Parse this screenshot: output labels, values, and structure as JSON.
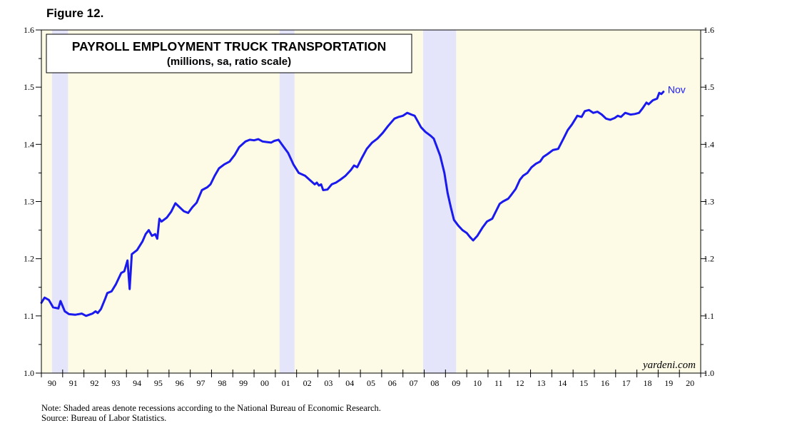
{
  "figure_label": "Figure 12.",
  "notes": {
    "note": "Note: Shaded areas denote recessions according to the National Bureau of Economic Research.",
    "source": "Source: Bureau of Labor Statistics."
  },
  "colors": {
    "plot_bg": "#fdfbe6",
    "recession": "#e4e4fb",
    "line": "#1a1aee",
    "annotation": "#1a1aff"
  },
  "chart_data": {
    "type": "line",
    "title": "PAYROLL EMPLOYMENT TRUCK TRANSPORTATION",
    "subtitle": "(millions, sa, ratio scale)",
    "credit": "yardeni.com",
    "annotation": "Nov",
    "ylim": [
      1.0,
      1.6
    ],
    "xlim": [
      1990,
      2021
    ],
    "scale": "ratio",
    "y_ticks": [
      "1.0",
      "1.1",
      "1.2",
      "1.3",
      "1.4",
      "1.5",
      "1.6"
    ],
    "x_tick_labels": [
      "90",
      "91",
      "92",
      "93",
      "94",
      "95",
      "96",
      "97",
      "98",
      "99",
      "00",
      "01",
      "02",
      "03",
      "04",
      "05",
      "06",
      "07",
      "08",
      "09",
      "10",
      "11",
      "12",
      "13",
      "14",
      "15",
      "16",
      "17",
      "18",
      "19",
      "20"
    ],
    "recessions": [
      [
        1990.5,
        1991.25
      ],
      [
        2001.2,
        2001.9
      ],
      [
        2007.95,
        2009.5
      ]
    ],
    "series": [
      {
        "values": [
          [
            1990.0,
            1.123
          ],
          [
            1990.15,
            1.132
          ],
          [
            1990.35,
            1.128
          ],
          [
            1990.55,
            1.115
          ],
          [
            1990.8,
            1.113
          ],
          [
            1990.9,
            1.126
          ],
          [
            1991.1,
            1.108
          ],
          [
            1991.3,
            1.103
          ],
          [
            1991.6,
            1.102
          ],
          [
            1991.9,
            1.104
          ],
          [
            1992.1,
            1.1
          ],
          [
            1992.4,
            1.104
          ],
          [
            1992.55,
            1.108
          ],
          [
            1992.65,
            1.105
          ],
          [
            1992.8,
            1.112
          ],
          [
            1993.0,
            1.13
          ],
          [
            1993.1,
            1.14
          ],
          [
            1993.3,
            1.143
          ],
          [
            1993.5,
            1.155
          ],
          [
            1993.75,
            1.175
          ],
          [
            1993.9,
            1.178
          ],
          [
            1994.05,
            1.197
          ],
          [
            1994.15,
            1.147
          ],
          [
            1994.25,
            1.208
          ],
          [
            1994.5,
            1.215
          ],
          [
            1994.75,
            1.23
          ],
          [
            1994.9,
            1.243
          ],
          [
            1995.05,
            1.25
          ],
          [
            1995.2,
            1.24
          ],
          [
            1995.35,
            1.243
          ],
          [
            1995.45,
            1.235
          ],
          [
            1995.55,
            1.27
          ],
          [
            1995.65,
            1.265
          ],
          [
            1995.9,
            1.272
          ],
          [
            1996.1,
            1.282
          ],
          [
            1996.3,
            1.297
          ],
          [
            1996.5,
            1.29
          ],
          [
            1996.7,
            1.283
          ],
          [
            1996.9,
            1.28
          ],
          [
            1997.1,
            1.29
          ],
          [
            1997.3,
            1.298
          ],
          [
            1997.55,
            1.32
          ],
          [
            1997.8,
            1.325
          ],
          [
            1997.95,
            1.33
          ],
          [
            1998.15,
            1.345
          ],
          [
            1998.35,
            1.358
          ],
          [
            1998.6,
            1.365
          ],
          [
            1998.85,
            1.37
          ],
          [
            1999.1,
            1.382
          ],
          [
            1999.3,
            1.395
          ],
          [
            1999.6,
            1.405
          ],
          [
            1999.8,
            1.408
          ],
          [
            2000.0,
            1.407
          ],
          [
            2000.2,
            1.409
          ],
          [
            2000.4,
            1.405
          ],
          [
            2000.6,
            1.404
          ],
          [
            2000.8,
            1.403
          ],
          [
            2000.95,
            1.406
          ],
          [
            2001.15,
            1.408
          ],
          [
            2001.4,
            1.395
          ],
          [
            2001.6,
            1.385
          ],
          [
            2001.85,
            1.365
          ],
          [
            2002.1,
            1.35
          ],
          [
            2002.4,
            1.345
          ],
          [
            2002.7,
            1.335
          ],
          [
            2002.85,
            1.33
          ],
          [
            2002.95,
            1.333
          ],
          [
            2003.05,
            1.328
          ],
          [
            2003.15,
            1.33
          ],
          [
            2003.25,
            1.32
          ],
          [
            2003.45,
            1.321
          ],
          [
            2003.65,
            1.33
          ],
          [
            2003.85,
            1.333
          ],
          [
            2004.05,
            1.338
          ],
          [
            2004.3,
            1.345
          ],
          [
            2004.55,
            1.355
          ],
          [
            2004.7,
            1.363
          ],
          [
            2004.85,
            1.36
          ],
          [
            2005.05,
            1.375
          ],
          [
            2005.3,
            1.392
          ],
          [
            2005.55,
            1.403
          ],
          [
            2005.8,
            1.41
          ],
          [
            2006.05,
            1.42
          ],
          [
            2006.3,
            1.432
          ],
          [
            2006.6,
            1.445
          ],
          [
            2006.8,
            1.448
          ],
          [
            2007.0,
            1.45
          ],
          [
            2007.2,
            1.455
          ],
          [
            2007.4,
            1.452
          ],
          [
            2007.55,
            1.45
          ],
          [
            2007.7,
            1.44
          ],
          [
            2007.85,
            1.43
          ],
          [
            2008.05,
            1.422
          ],
          [
            2008.3,
            1.415
          ],
          [
            2008.45,
            1.41
          ],
          [
            2008.6,
            1.395
          ],
          [
            2008.75,
            1.38
          ],
          [
            2008.95,
            1.35
          ],
          [
            2009.1,
            1.315
          ],
          [
            2009.25,
            1.29
          ],
          [
            2009.4,
            1.268
          ],
          [
            2009.6,
            1.258
          ],
          [
            2009.8,
            1.25
          ],
          [
            2010.0,
            1.245
          ],
          [
            2010.15,
            1.238
          ],
          [
            2010.3,
            1.232
          ],
          [
            2010.5,
            1.24
          ],
          [
            2010.75,
            1.255
          ],
          [
            2010.95,
            1.265
          ],
          [
            2011.2,
            1.27
          ],
          [
            2011.4,
            1.285
          ],
          [
            2011.55,
            1.296
          ],
          [
            2011.7,
            1.3
          ],
          [
            2011.95,
            1.305
          ],
          [
            2012.1,
            1.312
          ],
          [
            2012.3,
            1.322
          ],
          [
            2012.5,
            1.338
          ],
          [
            2012.65,
            1.345
          ],
          [
            2012.85,
            1.35
          ],
          [
            2013.05,
            1.36
          ],
          [
            2013.25,
            1.366
          ],
          [
            2013.45,
            1.37
          ],
          [
            2013.6,
            1.378
          ],
          [
            2013.8,
            1.383
          ],
          [
            2014.05,
            1.39
          ],
          [
            2014.3,
            1.392
          ],
          [
            2014.55,
            1.41
          ],
          [
            2014.75,
            1.425
          ],
          [
            2014.95,
            1.435
          ],
          [
            2015.2,
            1.45
          ],
          [
            2015.4,
            1.448
          ],
          [
            2015.55,
            1.458
          ],
          [
            2015.75,
            1.46
          ],
          [
            2015.95,
            1.455
          ],
          [
            2016.15,
            1.457
          ],
          [
            2016.35,
            1.452
          ],
          [
            2016.55,
            1.445
          ],
          [
            2016.75,
            1.443
          ],
          [
            2016.95,
            1.446
          ],
          [
            2017.1,
            1.45
          ],
          [
            2017.25,
            1.448
          ],
          [
            2017.45,
            1.455
          ],
          [
            2017.7,
            1.452
          ],
          [
            2017.9,
            1.453
          ],
          [
            2018.1,
            1.455
          ],
          [
            2018.25,
            1.462
          ],
          [
            2018.45,
            1.473
          ],
          [
            2018.55,
            1.47
          ],
          [
            2018.75,
            1.477
          ],
          [
            2018.95,
            1.48
          ],
          [
            2019.05,
            1.49
          ],
          [
            2019.15,
            1.488
          ],
          [
            2019.25,
            1.492
          ]
        ]
      }
    ]
  }
}
